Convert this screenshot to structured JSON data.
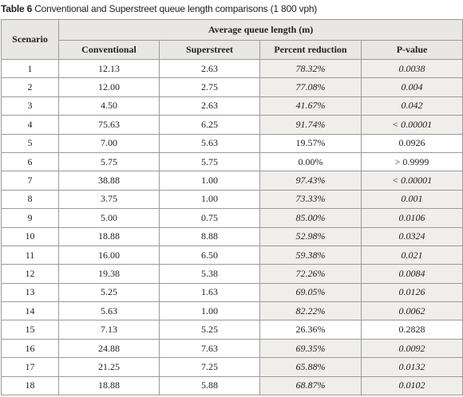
{
  "title": {
    "label": "Table 6",
    "text": "Conventional and Superstreet queue length comparisons (1 800 vph)"
  },
  "table": {
    "header": {
      "scenario": "Scenario",
      "group": "Average queue length (m)",
      "columns": [
        "Conventional",
        "Superstreet",
        "Percent reduction",
        "P-value"
      ]
    },
    "rows": [
      [
        "1",
        "12.13",
        "2.63",
        "78.32%",
        "0.0038"
      ],
      [
        "2",
        "12.00",
        "2.75",
        "77.08%",
        "0.004"
      ],
      [
        "3",
        "4.50",
        "2.63",
        "41.67%",
        "0.042"
      ],
      [
        "4",
        "75.63",
        "6.25",
        "91.74%",
        "< 0.00001"
      ],
      [
        "5",
        "7.00",
        "5.63",
        "19.57%",
        "0.0926"
      ],
      [
        "6",
        "5.75",
        "5.75",
        "0.00%",
        "> 0.9999"
      ],
      [
        "7",
        "38.88",
        "1.00",
        "97.43%",
        "< 0.00001"
      ],
      [
        "8",
        "3.75",
        "1.00",
        "73.33%",
        "0.001"
      ],
      [
        "9",
        "5.00",
        "0.75",
        "85.00%",
        "0.0106"
      ],
      [
        "10",
        "18.88",
        "8.88",
        "52.98%",
        "0.0324"
      ],
      [
        "11",
        "16.00",
        "6.50",
        "59.38%",
        "0.021"
      ],
      [
        "12",
        "19.38",
        "5.38",
        "72.26%",
        "0.0084"
      ],
      [
        "13",
        "5.25",
        "1.63",
        "69.05%",
        "0.0126"
      ],
      [
        "14",
        "5.63",
        "1.00",
        "82.22%",
        "0.0062"
      ],
      [
        "15",
        "7.13",
        "5.25",
        "26.36%",
        "0.2828"
      ],
      [
        "16",
        "24.88",
        "7.63",
        "69.35%",
        "0.0092"
      ],
      [
        "17",
        "21.25",
        "7.25",
        "65.88%",
        "0.0132"
      ],
      [
        "18",
        "18.88",
        "5.88",
        "68.87%",
        "0.0102"
      ]
    ],
    "highlight_rows": [
      0,
      1,
      2,
      3,
      6,
      7,
      8,
      9,
      10,
      11,
      12,
      13,
      15,
      16,
      17
    ]
  }
}
